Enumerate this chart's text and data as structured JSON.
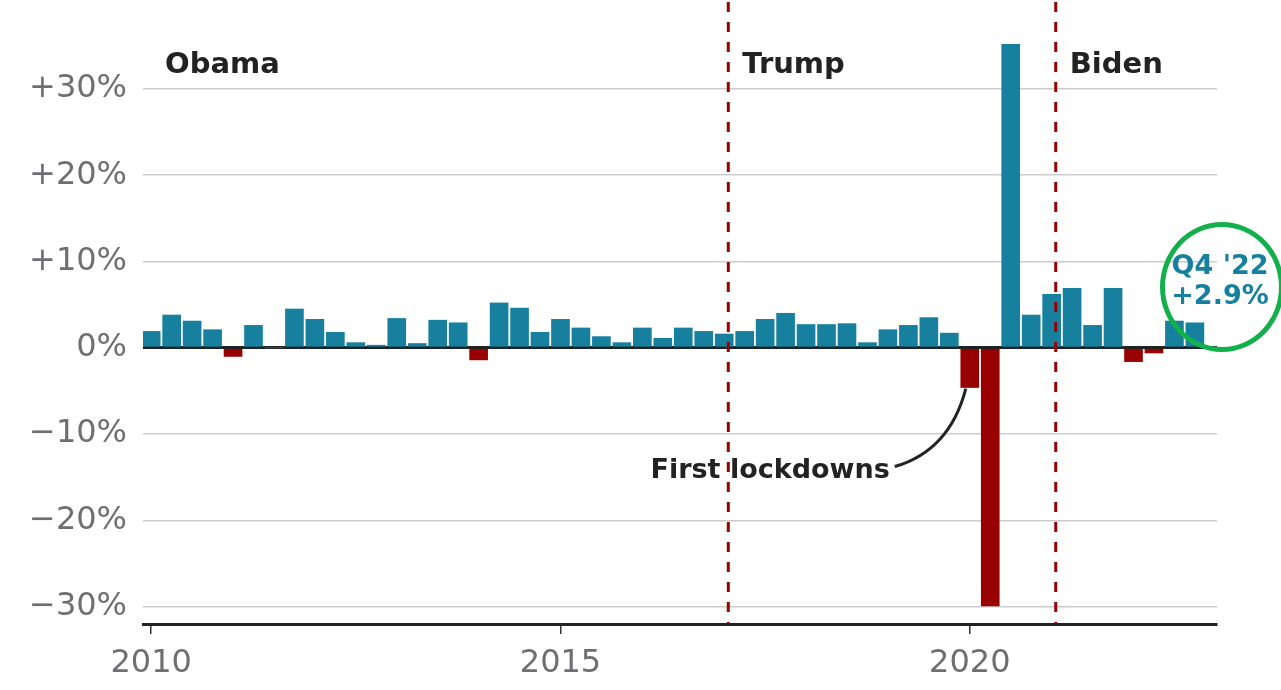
{
  "chart_data": {
    "type": "bar",
    "x": [
      2010,
      2010.25,
      2010.5,
      2010.75,
      2011,
      2011.25,
      2011.5,
      2011.75,
      2012,
      2012.25,
      2012.5,
      2012.75,
      2013,
      2013.25,
      2013.5,
      2013.75,
      2014,
      2014.25,
      2014.5,
      2014.75,
      2015,
      2015.25,
      2015.5,
      2015.75,
      2016,
      2016.25,
      2016.5,
      2016.75,
      2017,
      2017.25,
      2017.5,
      2017.75,
      2018,
      2018.25,
      2018.5,
      2018.75,
      2019,
      2019.25,
      2019.5,
      2019.75,
      2020,
      2020.25,
      2020.5,
      2020.75,
      2021,
      2021.25,
      2021.5,
      2021.75,
      2022,
      2022.25,
      2022.5,
      2022.75
    ],
    "values": [
      1.9,
      3.8,
      3.1,
      2.1,
      -1.0,
      2.6,
      0.0,
      4.5,
      3.3,
      1.8,
      0.6,
      0.3,
      3.4,
      0.5,
      3.2,
      2.9,
      -1.4,
      5.2,
      4.6,
      1.8,
      3.3,
      2.3,
      1.3,
      0.6,
      2.3,
      1.1,
      2.3,
      1.9,
      1.6,
      1.9,
      3.3,
      4.0,
      2.7,
      2.7,
      2.8,
      0.6,
      2.1,
      2.6,
      3.5,
      1.7,
      -4.6,
      -29.9,
      35.2,
      3.8,
      6.2,
      6.9,
      2.6,
      6.9,
      -1.6,
      -0.6,
      3.1,
      2.9
    ],
    "colors": [
      "#17809f",
      "#17809f",
      "#17809f",
      "#17809f",
      "#990000",
      "#17809f",
      "#17809f",
      "#17809f",
      "#17809f",
      "#17809f",
      "#17809f",
      "#17809f",
      "#17809f",
      "#17809f",
      "#17809f",
      "#17809f",
      "#990000",
      "#17809f",
      "#17809f",
      "#17809f",
      "#17809f",
      "#17809f",
      "#17809f",
      "#17809f",
      "#17809f",
      "#17809f",
      "#17809f",
      "#17809f",
      "#17809f",
      "#17809f",
      "#17809f",
      "#17809f",
      "#17809f",
      "#17809f",
      "#17809f",
      "#17809f",
      "#17809f",
      "#17809f",
      "#17809f",
      "#17809f",
      "#990000",
      "#990000",
      "#17809f",
      "#17809f",
      "#17809f",
      "#17809f",
      "#17809f",
      "#17809f",
      "#990000",
      "#990000",
      "#17809f",
      "#17809f"
    ],
    "xlim": [
      2009.9,
      2023.02
    ],
    "xticks": [
      2010,
      2015,
      2020
    ],
    "ylim": [
      -32,
      35.2
    ],
    "yticks": [
      {
        "value": -30,
        "label": "−30%"
      },
      {
        "value": -20,
        "label": "−20%"
      },
      {
        "value": -10,
        "label": "−10%"
      },
      {
        "value": 0,
        "label": "0%"
      },
      {
        "value": 10,
        "label": "+10%"
      },
      {
        "value": 20,
        "label": "+20%"
      },
      {
        "value": 30,
        "label": "+30%"
      }
    ],
    "grid": "y",
    "legend": false,
    "ref_lines": [
      {
        "axis": "x",
        "value": 2017.05,
        "label": "Trump",
        "color": "#990000",
        "line_style": "dashed"
      },
      {
        "axis": "x",
        "value": 2021.05,
        "label": "Biden",
        "color": "#990000",
        "line_style": "dashed"
      }
    ],
    "annotations": [
      "Obama",
      {
        "text": "First lockdowns",
        "x": 2020,
        "y": -4.6
      },
      "Q4 '22\n+2.9%"
    ]
  }
}
